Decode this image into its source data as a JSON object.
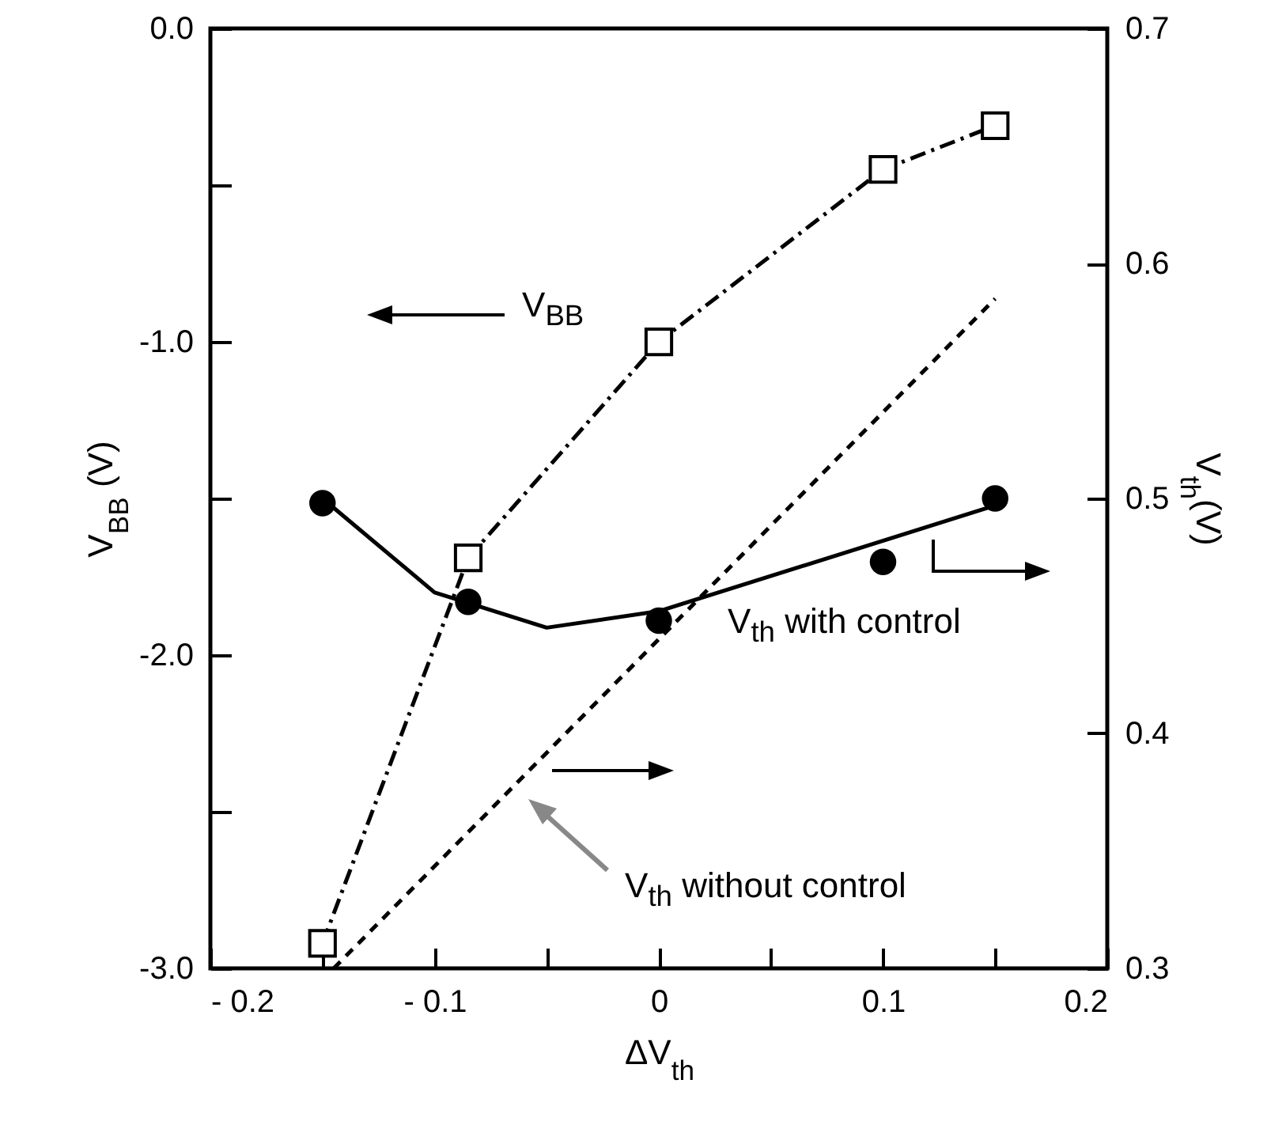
{
  "chart_data": {
    "type": "line",
    "xlabel": "ΔV$_{th}$",
    "ylabel": "V$_{BB}$ (V)",
    "y2label": "V$_{th}$(V)",
    "xlim": [
      -0.2,
      0.2
    ],
    "xticks": [
      {
        "value": -0.2,
        "label": "- 0.2"
      },
      {
        "value": -0.15,
        "label": null
      },
      {
        "value": -0.1,
        "label": "- 0.1"
      },
      {
        "value": -0.05,
        "label": null
      },
      {
        "value": 0,
        "label": "0"
      },
      {
        "value": 0.05,
        "label": null
      },
      {
        "value": 0.1,
        "label": "0.1"
      },
      {
        "value": 0.15,
        "label": null
      },
      {
        "value": 0.2,
        "label": "0.2"
      }
    ],
    "ylim": [
      -3.0,
      0.0
    ],
    "yticks": [
      {
        "value": -3,
        "label": "-3.0"
      },
      {
        "value": -2.5,
        "label": null
      },
      {
        "value": -2,
        "label": "-2.0"
      },
      {
        "value": -1.5,
        "label": null
      },
      {
        "value": -1,
        "label": "-1.0"
      },
      {
        "value": -0.5,
        "label": null
      },
      {
        "value": 0,
        "label": "0.0"
      }
    ],
    "y2lim": [
      0.3,
      0.7
    ],
    "y2ticks": [
      0.3,
      0.4,
      0.5,
      0.6,
      0.7
    ],
    "series": [
      {
        "color": "#000000",
        "marker": "square",
        "line_style": "dashdot",
        "x": [
          -0.15,
          -0.085,
          0,
          0.1,
          0.15
        ],
        "values": [
          -2.92,
          -1.69,
          -1.0,
          -0.45,
          -0.31
        ]
      },
      {
        "axis": "y2",
        "color": "#000000",
        "marker": "none",
        "line_style": "solid",
        "x": [
          -0.15,
          -0.1,
          -0.05,
          0,
          0.15
        ],
        "values": [
          0.5,
          0.46,
          0.445,
          0.452,
          0.497
        ]
      },
      {
        "type": "scatter",
        "axis": "y2",
        "color": "#000000",
        "marker": "circle",
        "x": [
          -0.15,
          -0.085,
          0,
          0.1,
          0.15
        ],
        "values": [
          0.498,
          0.456,
          0.448,
          0.473,
          0.5
        ]
      },
      {
        "axis": "y2",
        "color": "#000000",
        "marker": "none",
        "line_style": "dashed",
        "x": [
          -0.145,
          0.15
        ],
        "values": [
          0.3,
          0.585
        ]
      }
    ],
    "annotations": [
      "V$_{BB}$",
      "V$_{th}$ with control",
      "V$_{th}$ without control"
    ]
  }
}
